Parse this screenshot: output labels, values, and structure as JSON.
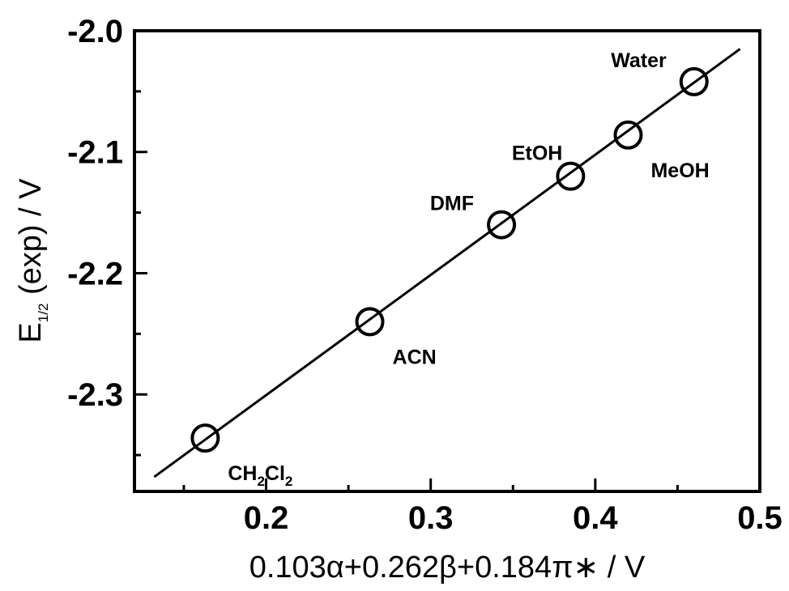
{
  "chart_data": {
    "type": "scatter",
    "xlabel": "0.103α+0.262β+0.184π∗ / V",
    "ylabel": {
      "main": "E",
      "sub": "1/2",
      "rest": " (exp) / V"
    },
    "xlim": [
      0.12,
      0.5
    ],
    "ylim": [
      -2.38,
      -2.0
    ],
    "xticks": [
      0.2,
      0.3,
      0.4,
      0.5
    ],
    "xtick_labels": [
      "0.2",
      "0.3",
      "0.4",
      "0.5"
    ],
    "yticks": [
      -2.0,
      -2.1,
      -2.2,
      -2.3
    ],
    "ytick_labels": [
      "-2.0",
      "-2.1",
      "-2.2",
      "-2.3"
    ],
    "grid": false,
    "points": [
      {
        "x": 0.163,
        "y": -2.336,
        "label": "CH",
        "sub1": "2",
        "mid": "Cl",
        "sub2": "2",
        "anchor": "below-right"
      },
      {
        "x": 0.263,
        "y": -2.24,
        "label": "ACN",
        "anchor": "below-right"
      },
      {
        "x": 0.343,
        "y": -2.16,
        "label": "DMF",
        "anchor": "left"
      },
      {
        "x": 0.385,
        "y": -2.12,
        "label": "EtOH",
        "anchor": "above-left"
      },
      {
        "x": 0.42,
        "y": -2.086,
        "label": "MeOH",
        "anchor": "below-right"
      },
      {
        "x": 0.46,
        "y": -2.042,
        "label": "Water",
        "anchor": "left"
      }
    ],
    "fit_line": {
      "x1": 0.132,
      "y1": -2.368,
      "x2": 0.488,
      "y2": -2.015
    }
  }
}
